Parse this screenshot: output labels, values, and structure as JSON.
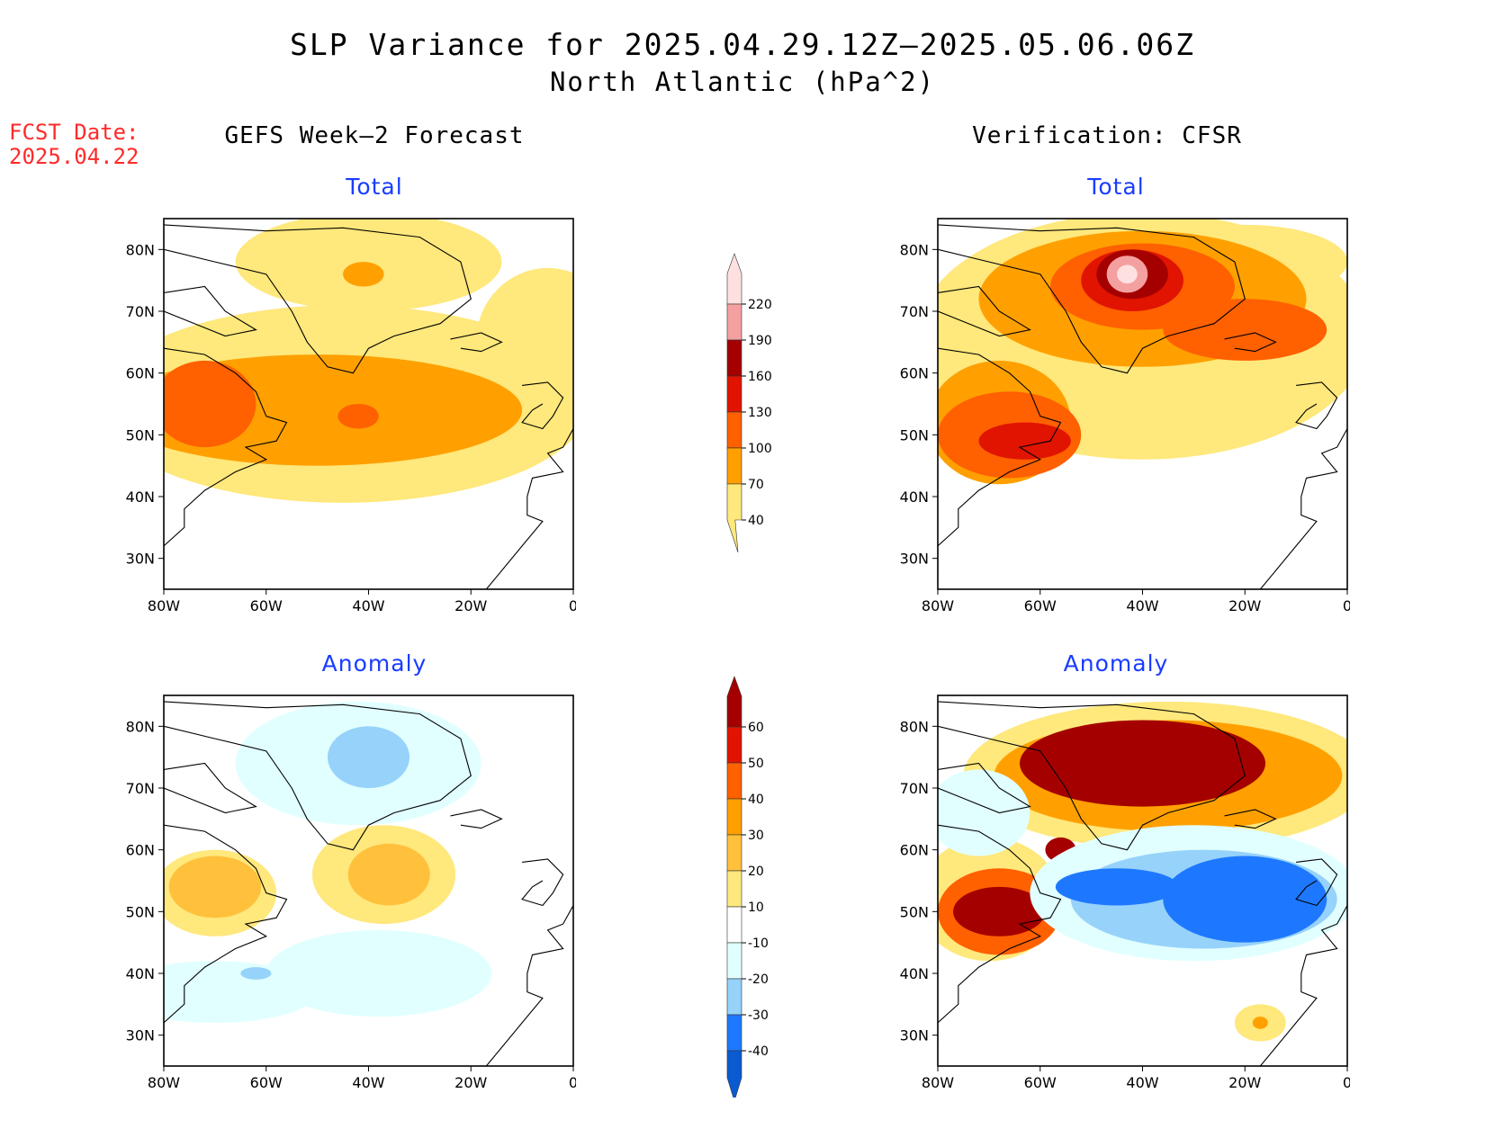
{
  "title": {
    "line1": "SLP Variance for 2025.04.29.12Z—2025.05.06.06Z",
    "line2": "North Atlantic (hPa^2)"
  },
  "fcst": {
    "label": "FCST Date:",
    "date": "2025.04.22"
  },
  "columns": {
    "left_heading": "GEFS Week—2 Forecast",
    "right_heading": "Verification: CFSR"
  },
  "panels": [
    {
      "id": "gefs-total",
      "title": "Total"
    },
    {
      "id": "cfsr-total",
      "title": "Total"
    },
    {
      "id": "gefs-anomaly",
      "title": "Anomaly"
    },
    {
      "id": "cfsr-anomaly",
      "title": "Anomaly"
    }
  ],
  "axes": {
    "lat_labels": [
      "80N",
      "70N",
      "60N",
      "50N",
      "40N",
      "30N"
    ],
    "lon_labels": [
      "80W",
      "60W",
      "40W",
      "20W",
      "0"
    ]
  },
  "colorbars": {
    "total": {
      "levels": [
        "40",
        "70",
        "100",
        "130",
        "160",
        "190",
        "220"
      ],
      "colors": [
        "#ffe87c",
        "#ffa000",
        "#ff6000",
        "#e01400",
        "#a50000",
        "#f5a0a0",
        "#ffe0e0"
      ]
    },
    "anomaly": {
      "levels": [
        "-40",
        "-30",
        "-20",
        "-10",
        "10",
        "20",
        "30",
        "40",
        "50",
        "60"
      ],
      "colors": [
        "#0a5ad2",
        "#1e78ff",
        "#96d2fa",
        "#e1ffff",
        "#ffffff",
        "#ffe87c",
        "#ffc03c",
        "#ffa000",
        "#ff6000",
        "#e01400",
        "#a50000"
      ]
    }
  }
}
